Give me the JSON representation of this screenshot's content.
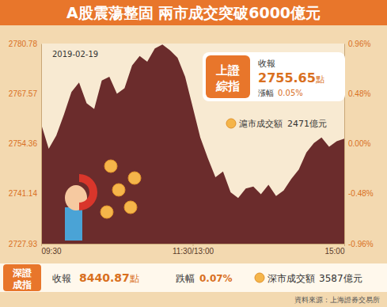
{
  "chart_data": {
    "type": "area",
    "title": "A股震蕩整固  兩市成交突破6000億元",
    "date": "2019-02-19",
    "color": "#6b2c2c",
    "x": [
      0,
      6,
      12,
      18,
      24,
      30,
      36,
      42,
      48,
      54,
      60,
      66,
      72,
      78,
      84,
      90,
      96,
      102,
      108,
      114,
      120,
      126,
      132,
      138,
      144,
      150,
      156,
      162,
      168,
      174,
      180,
      186,
      192,
      198,
      204,
      210,
      216,
      222,
      228,
      234,
      240
    ],
    "values": [
      2759.5,
      2753.0,
      2756.5,
      2762.0,
      2768.0,
      2770.5,
      2765.0,
      2763.5,
      2771.0,
      2772.0,
      2767.5,
      2769.0,
      2775.0,
      2777.5,
      2776.0,
      2779.5,
      2780.5,
      2779.0,
      2777.0,
      2772.0,
      2764.0,
      2756.0,
      2750.5,
      2745.5,
      2747.0,
      2741.5,
      2740.0,
      2742.5,
      2743.0,
      2741.0,
      2743.5,
      2740.5,
      2742.0,
      2745.0,
      2747.5,
      2752.0,
      2754.5,
      2756.0,
      2753.5,
      2755.0,
      2755.65
    ],
    "xlim": [
      0,
      240
    ],
    "xticks": [
      {
        "value": 0,
        "label": "09:30"
      },
      {
        "value": 120,
        "label": "11:30/13:00"
      },
      {
        "value": 240,
        "label": "15:00"
      }
    ],
    "ylim": [
      2727.93,
      2780.78
    ],
    "yticks": [
      2727.93,
      2741.14,
      2754.36,
      2767.57,
      2780.78
    ],
    "y2lim": [
      -0.96,
      0.96
    ],
    "y2ticks": [
      {
        "value": -0.96,
        "label": "-0.96%"
      },
      {
        "value": -0.48,
        "label": "-0.48%"
      },
      {
        "value": 0,
        "label": "0.00%"
      },
      {
        "value": 0.48,
        "label": "0.48%"
      },
      {
        "value": 0.96,
        "label": "0.96%"
      }
    ],
    "panels": [
      {
        "name": "上證綜指",
        "close_label": "收報",
        "close": 2755.65,
        "close_unit": "點",
        "change_label": "漲幅",
        "change": 0.05,
        "change_unit": "%",
        "turnover_label": "滬市成交額",
        "turnover": 2471,
        "turnover_unit": "億元"
      },
      {
        "name": "深證成指",
        "close_label": "收報",
        "close": 8440.87,
        "close_unit": "點",
        "change_label": "跌幅",
        "change": 0.07,
        "change_unit": "%",
        "turnover_label": "深市成交額",
        "turnover": 3587,
        "turnover_unit": "億元"
      }
    ],
    "source": "資料來源：上海證券交易所"
  }
}
